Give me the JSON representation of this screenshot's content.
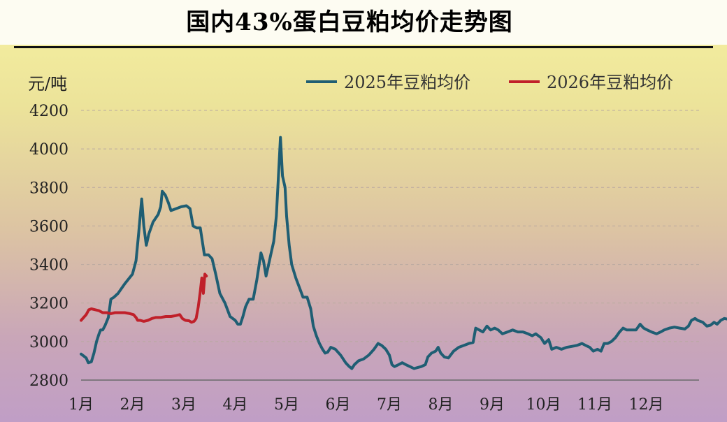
{
  "title": "国内43%蛋白豆粕均价走势图",
  "chart_data": {
    "type": "line",
    "title": "国内43%蛋白豆粕均价走势图",
    "ylabel": "元/吨",
    "xlabel": "",
    "ylim": [
      2800,
      4200
    ],
    "yticks": [
      2800,
      3000,
      3200,
      3400,
      3600,
      3800,
      4000,
      4200
    ],
    "xlim": [
      0,
      12
    ],
    "xticks": [
      {
        "value": 0,
        "label": "1月"
      },
      {
        "value": 1,
        "label": "2月"
      },
      {
        "value": 2,
        "label": "3月"
      },
      {
        "value": 3,
        "label": "4月"
      },
      {
        "value": 4,
        "label": "5月"
      },
      {
        "value": 5,
        "label": "6月"
      },
      {
        "value": 6,
        "label": "7月"
      },
      {
        "value": 7,
        "label": "8月"
      },
      {
        "value": 8,
        "label": "9月"
      },
      {
        "value": 9,
        "label": "10月"
      },
      {
        "value": 10,
        "label": "11月"
      },
      {
        "value": 11,
        "label": "12月"
      }
    ],
    "grid": "horizontal-dashed",
    "legend_position": "top-right",
    "series": [
      {
        "name": "2025年豆粕均价",
        "color": "#1f5e73",
        "points": [
          [
            0.0,
            2935
          ],
          [
            0.05,
            2925
          ],
          [
            0.1,
            2915
          ],
          [
            0.14,
            2890
          ],
          [
            0.2,
            2895
          ],
          [
            0.25,
            2940
          ],
          [
            0.3,
            3000
          ],
          [
            0.35,
            3040
          ],
          [
            0.38,
            3060
          ],
          [
            0.42,
            3060
          ],
          [
            0.47,
            3085
          ],
          [
            0.53,
            3125
          ],
          [
            0.58,
            3220
          ],
          [
            0.64,
            3230
          ],
          [
            0.72,
            3250
          ],
          [
            0.85,
            3300
          ],
          [
            1.0,
            3350
          ],
          [
            1.07,
            3420
          ],
          [
            1.12,
            3560
          ],
          [
            1.18,
            3740
          ],
          [
            1.22,
            3600
          ],
          [
            1.27,
            3500
          ],
          [
            1.32,
            3560
          ],
          [
            1.4,
            3620
          ],
          [
            1.5,
            3660
          ],
          [
            1.55,
            3700
          ],
          [
            1.58,
            3780
          ],
          [
            1.64,
            3760
          ],
          [
            1.7,
            3720
          ],
          [
            1.75,
            3680
          ],
          [
            1.85,
            3690
          ],
          [
            1.95,
            3700
          ],
          [
            2.05,
            3705
          ],
          [
            2.12,
            3690
          ],
          [
            2.18,
            3600
          ],
          [
            2.25,
            3590
          ],
          [
            2.32,
            3590
          ],
          [
            2.4,
            3450
          ],
          [
            2.48,
            3450
          ],
          [
            2.55,
            3430
          ],
          [
            2.62,
            3350
          ],
          [
            2.7,
            3250
          ],
          [
            2.8,
            3200
          ],
          [
            2.9,
            3130
          ],
          [
            3.0,
            3110
          ],
          [
            3.05,
            3090
          ],
          [
            3.1,
            3090
          ],
          [
            3.15,
            3130
          ],
          [
            3.2,
            3180
          ],
          [
            3.27,
            3220
          ],
          [
            3.35,
            3220
          ],
          [
            3.42,
            3320
          ],
          [
            3.5,
            3460
          ],
          [
            3.55,
            3420
          ],
          [
            3.6,
            3340
          ],
          [
            3.65,
            3400
          ],
          [
            3.7,
            3460
          ],
          [
            3.75,
            3520
          ],
          [
            3.8,
            3650
          ],
          [
            3.84,
            3850
          ],
          [
            3.88,
            4060
          ],
          [
            3.92,
            3860
          ],
          [
            3.97,
            3800
          ],
          [
            4.0,
            3650
          ],
          [
            4.05,
            3500
          ],
          [
            4.1,
            3400
          ],
          [
            4.18,
            3330
          ],
          [
            4.25,
            3280
          ],
          [
            4.32,
            3230
          ],
          [
            4.4,
            3230
          ],
          [
            4.47,
            3170
          ],
          [
            4.52,
            3080
          ],
          [
            4.58,
            3030
          ],
          [
            4.64,
            2990
          ],
          [
            4.7,
            2960
          ],
          [
            4.75,
            2940
          ],
          [
            4.8,
            2945
          ],
          [
            4.86,
            2970
          ],
          [
            4.95,
            2960
          ],
          [
            5.05,
            2930
          ],
          [
            5.15,
            2890
          ],
          [
            5.22,
            2870
          ],
          [
            5.27,
            2860
          ],
          [
            5.32,
            2880
          ],
          [
            5.4,
            2900
          ],
          [
            5.5,
            2910
          ],
          [
            5.6,
            2930
          ],
          [
            5.7,
            2960
          ],
          [
            5.78,
            2990
          ],
          [
            5.85,
            2980
          ],
          [
            5.93,
            2960
          ],
          [
            6.0,
            2930
          ],
          [
            6.05,
            2880
          ],
          [
            6.1,
            2870
          ],
          [
            6.18,
            2880
          ],
          [
            6.25,
            2890
          ],
          [
            6.32,
            2880
          ],
          [
            6.4,
            2870
          ],
          [
            6.48,
            2860
          ],
          [
            6.55,
            2865
          ],
          [
            6.62,
            2870
          ],
          [
            6.7,
            2880
          ],
          [
            6.75,
            2920
          ],
          [
            6.82,
            2940
          ],
          [
            6.9,
            2950
          ],
          [
            6.95,
            2970
          ],
          [
            7.0,
            2940
          ],
          [
            7.07,
            2920
          ],
          [
            7.15,
            2915
          ],
          [
            7.25,
            2950
          ],
          [
            7.35,
            2970
          ],
          [
            7.45,
            2980
          ],
          [
            7.55,
            2990
          ],
          [
            7.63,
            2995
          ],
          [
            7.68,
            3070
          ],
          [
            7.75,
            3060
          ],
          [
            7.82,
            3050
          ],
          [
            7.9,
            3080
          ],
          [
            7.97,
            3060
          ],
          [
            8.05,
            3070
          ],
          [
            8.12,
            3060
          ],
          [
            8.2,
            3040
          ],
          [
            8.3,
            3050
          ],
          [
            8.4,
            3060
          ],
          [
            8.5,
            3050
          ],
          [
            8.6,
            3050
          ],
          [
            8.7,
            3040
          ],
          [
            8.78,
            3030
          ],
          [
            8.85,
            3040
          ],
          [
            8.95,
            3020
          ],
          [
            9.02,
            2990
          ],
          [
            9.1,
            3010
          ],
          [
            9.16,
            2960
          ],
          [
            9.25,
            2970
          ],
          [
            9.35,
            2960
          ],
          [
            9.45,
            2970
          ],
          [
            9.55,
            2975
          ],
          [
            9.65,
            2980
          ],
          [
            9.75,
            2990
          ],
          [
            9.82,
            2980
          ],
          [
            9.9,
            2970
          ],
          [
            9.97,
            2950
          ],
          [
            10.05,
            2960
          ],
          [
            10.12,
            2950
          ],
          [
            10.18,
            2990
          ],
          [
            10.25,
            2990
          ],
          [
            10.32,
            3000
          ],
          [
            10.4,
            3020
          ],
          [
            10.48,
            3050
          ],
          [
            10.55,
            3070
          ],
          [
            10.62,
            3060
          ],
          [
            10.7,
            3060
          ],
          [
            10.8,
            3060
          ],
          [
            10.88,
            3090
          ],
          [
            10.95,
            3070
          ],
          [
            11.02,
            3060
          ],
          [
            11.1,
            3050
          ],
          [
            11.2,
            3040
          ],
          [
            11.28,
            3050
          ],
          [
            11.35,
            3060
          ],
          [
            11.45,
            3070
          ],
          [
            11.55,
            3075
          ],
          [
            11.65,
            3070
          ],
          [
            11.75,
            3065
          ],
          [
            11.82,
            3080
          ],
          [
            11.88,
            3110
          ],
          [
            11.95,
            3120
          ],
          [
            12.0,
            3110
          ],
          [
            12.1,
            3100
          ],
          [
            12.18,
            3080
          ],
          [
            12.25,
            3085
          ],
          [
            12.32,
            3100
          ],
          [
            12.38,
            3090
          ],
          [
            12.45,
            3110
          ],
          [
            12.52,
            3120
          ],
          [
            12.6,
            3115
          ]
        ]
      },
      {
        "name": "2026年豆粕均价",
        "color": "#c0202a",
        "points": [
          [
            0.0,
            3110
          ],
          [
            0.05,
            3125
          ],
          [
            0.1,
            3140
          ],
          [
            0.15,
            3165
          ],
          [
            0.2,
            3170
          ],
          [
            0.28,
            3165
          ],
          [
            0.35,
            3160
          ],
          [
            0.42,
            3150
          ],
          [
            0.5,
            3150
          ],
          [
            0.58,
            3145
          ],
          [
            0.66,
            3150
          ],
          [
            0.75,
            3150
          ],
          [
            0.85,
            3150
          ],
          [
            0.95,
            3145
          ],
          [
            1.02,
            3140
          ],
          [
            1.07,
            3125
          ],
          [
            1.1,
            3110
          ],
          [
            1.15,
            3110
          ],
          [
            1.22,
            3105
          ],
          [
            1.3,
            3110
          ],
          [
            1.38,
            3120
          ],
          [
            1.45,
            3125
          ],
          [
            1.55,
            3125
          ],
          [
            1.65,
            3130
          ],
          [
            1.75,
            3130
          ],
          [
            1.85,
            3135
          ],
          [
            1.92,
            3140
          ],
          [
            1.97,
            3120
          ],
          [
            2.03,
            3110
          ],
          [
            2.1,
            3108
          ],
          [
            2.15,
            3100
          ],
          [
            2.2,
            3105
          ],
          [
            2.24,
            3120
          ],
          [
            2.28,
            3180
          ],
          [
            2.32,
            3260
          ],
          [
            2.35,
            3330
          ],
          [
            2.38,
            3250
          ],
          [
            2.41,
            3350
          ],
          [
            2.44,
            3340
          ]
        ]
      }
    ]
  }
}
